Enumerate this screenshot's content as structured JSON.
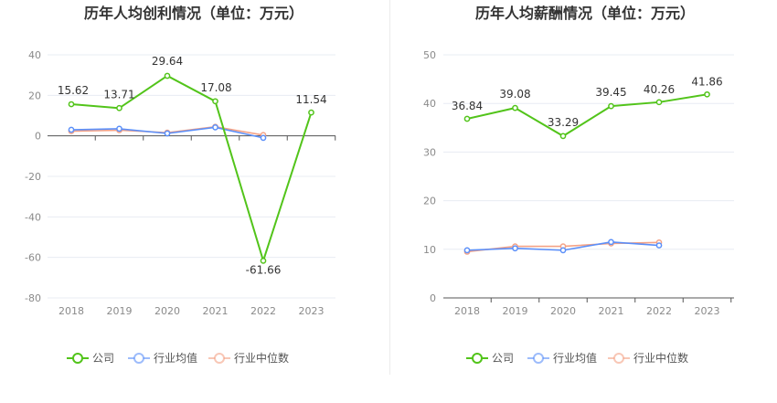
{
  "colors": {
    "company": "#52c41a",
    "industry_avg": "#5b8ff9",
    "industry_median": "#f4a286",
    "grid": "#e8ecf3",
    "axis": "#555555"
  },
  "legend": {
    "company": "公司",
    "industry_avg": "行业均值",
    "industry_median": "行业中位数"
  },
  "chart_data": [
    {
      "type": "line",
      "title": "历年人均创利情况（单位：万元）",
      "categories": [
        "2018",
        "2019",
        "2020",
        "2021",
        "2022",
        "2023"
      ],
      "ylim": [
        -80,
        40
      ],
      "yticks": [
        40,
        20,
        0,
        -20,
        -40,
        -60,
        -80
      ],
      "grid": true,
      "legend_position": "bottom",
      "series": [
        {
          "key": "company",
          "name": "公司",
          "values": [
            15.62,
            13.71,
            29.64,
            17.08,
            -61.66,
            11.54
          ],
          "labels": [
            "15.62",
            "13.71",
            "29.64",
            "17.08",
            "-61.66",
            "11.54"
          ]
        },
        {
          "key": "industry_avg",
          "name": "行业均值",
          "values": [
            3.0,
            3.5,
            1.2,
            4.2,
            -1.0,
            null
          ]
        },
        {
          "key": "industry_median",
          "name": "行业中位数",
          "values": [
            2.3,
            2.8,
            1.6,
            4.5,
            0.4,
            null
          ]
        }
      ]
    },
    {
      "type": "line",
      "title": "历年人均薪酬情况（单位：万元）",
      "categories": [
        "2018",
        "2019",
        "2020",
        "2021",
        "2022",
        "2023"
      ],
      "ylim": [
        0,
        50
      ],
      "yticks": [
        50,
        40,
        30,
        20,
        10,
        0
      ],
      "grid": true,
      "legend_position": "bottom",
      "series": [
        {
          "key": "company",
          "name": "公司",
          "values": [
            36.84,
            39.08,
            33.29,
            39.45,
            40.26,
            41.86
          ],
          "labels": [
            "36.84",
            "39.08",
            "33.29",
            "39.45",
            "40.26",
            "41.86"
          ]
        },
        {
          "key": "industry_avg",
          "name": "行业均值",
          "values": [
            9.8,
            10.2,
            9.8,
            11.5,
            10.8,
            null
          ]
        },
        {
          "key": "industry_median",
          "name": "行业中位数",
          "values": [
            9.5,
            10.6,
            10.6,
            11.2,
            11.4,
            null
          ]
        }
      ]
    }
  ]
}
